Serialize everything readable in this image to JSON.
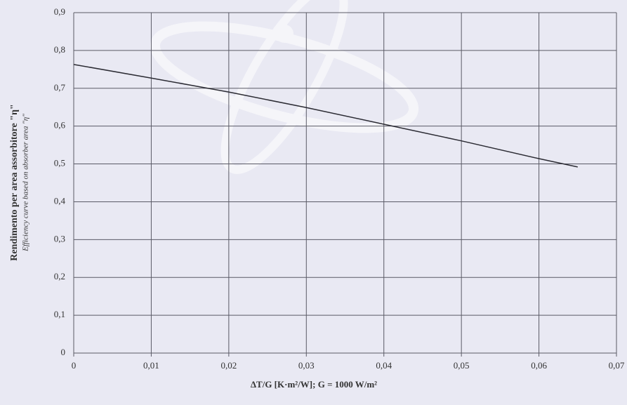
{
  "chart_data": {
    "type": "line",
    "x_label": "ΔT/G [K·m²/W]; G = 1000 W/m²",
    "y_label": "Rendimento per area assorbitore \"η\"",
    "y_sublabel": "Efficiency curve based on absorber area \"η\"",
    "x": [
      0,
      0.01,
      0.02,
      0.03,
      0.04,
      0.05,
      0.06,
      0.065
    ],
    "series": [
      {
        "color": "#2b2b33",
        "values": [
          0.763,
          0.727,
          0.69,
          0.649,
          0.605,
          0.561,
          0.514,
          0.492
        ]
      }
    ],
    "xlim": [
      0,
      0.07
    ],
    "xticks": [
      0,
      {
        "value": 0.01,
        "label": "0,01"
      },
      {
        "value": 0.02,
        "label": "0,02"
      },
      {
        "value": 0.03,
        "label": "0,03"
      },
      {
        "value": 0.04,
        "label": "0,04"
      },
      {
        "value": 0.05,
        "label": "0,05"
      },
      {
        "value": 0.06,
        "label": "0,06"
      },
      {
        "value": 0.07,
        "label": "0,07"
      }
    ],
    "ylim": [
      0,
      0.9
    ],
    "yticks": [
      0,
      {
        "value": 0.1,
        "label": "0,1"
      },
      {
        "value": 0.2,
        "label": "0,2"
      },
      {
        "value": 0.3,
        "label": "0,3"
      },
      {
        "value": 0.4,
        "label": "0,4"
      },
      {
        "value": 0.5,
        "label": "0,5"
      },
      {
        "value": 0.6,
        "label": "0,6"
      },
      {
        "value": 0.7,
        "label": "0,7"
      },
      {
        "value": 0.8,
        "label": "0,8"
      },
      {
        "value": 0.9,
        "label": "0,9"
      }
    ],
    "grid": true
  }
}
